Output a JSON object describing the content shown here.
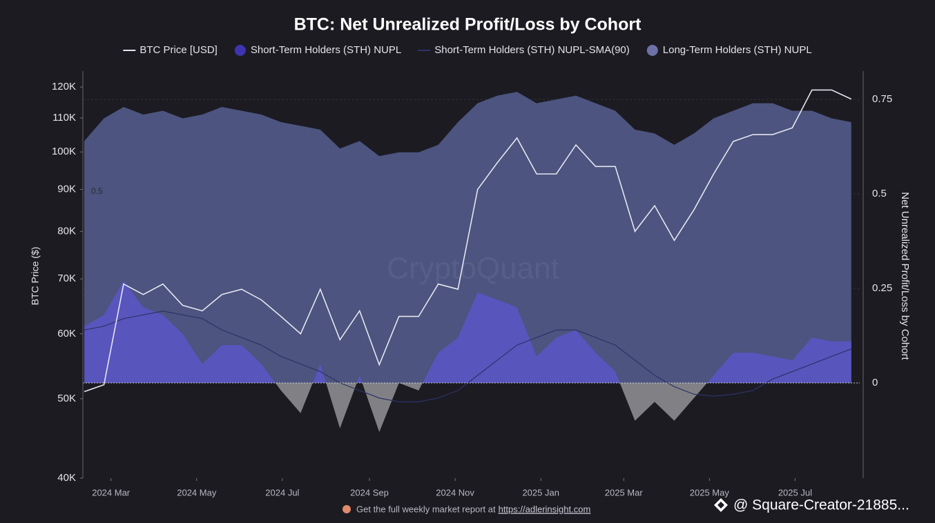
{
  "chart_data": {
    "type": "combo",
    "title": "BTC: Net Unrealized Profit/Loss by Cohort",
    "y_label": "BTC Price ($)",
    "y2_label": "Net Unrealized Profit/Loss by Cohort",
    "watermark": "CryptoQuant",
    "annotations": [
      "0.5"
    ],
    "footer": {
      "text": "Get the full weekly market report at",
      "link": "https://adlerinsight.com"
    },
    "overlay": "@ Square-Creator-21885...",
    "x": [
      "2024-02-11",
      "2024-02-25",
      "2024-03-10",
      "2024-03-24",
      "2024-04-07",
      "2024-04-21",
      "2024-05-05",
      "2024-05-19",
      "2024-06-02",
      "2024-06-16",
      "2024-06-30",
      "2024-07-14",
      "2024-07-28",
      "2024-08-11",
      "2024-08-25",
      "2024-09-08",
      "2024-09-22",
      "2024-10-06",
      "2024-10-20",
      "2024-11-03",
      "2024-11-17",
      "2024-12-01",
      "2024-12-15",
      "2024-12-29",
      "2025-01-12",
      "2025-01-26",
      "2025-02-09",
      "2025-02-23",
      "2025-03-09",
      "2025-03-23",
      "2025-04-06",
      "2025-04-20",
      "2025-05-04",
      "2025-05-18",
      "2025-06-01",
      "2025-06-15",
      "2025-06-29",
      "2025-07-13",
      "2025-07-27",
      "2025-08-10"
    ],
    "xlim": [
      "2024-02-10",
      "2025-08-16"
    ],
    "xticks": [
      {
        "value": "2024-03-01",
        "label": "2024 Mar"
      },
      {
        "value": "2024-05-01",
        "label": "2024 May"
      },
      {
        "value": "2024-07-01",
        "label": "2024 Jul"
      },
      {
        "value": "2024-09-01",
        "label": "2024 Sep"
      },
      {
        "value": "2024-11-01",
        "label": "2024 Nov"
      },
      {
        "value": "2025-01-01",
        "label": "2025 Jan"
      },
      {
        "value": "2025-03-01",
        "label": "2025 Mar"
      },
      {
        "value": "2025-05-01",
        "label": "2025 May"
      },
      {
        "value": "2025-07-01",
        "label": "2025 Jul"
      }
    ],
    "ylim": [
      40000,
      125500
    ],
    "log_y": true,
    "yticks": [
      {
        "value": 40000,
        "label": "40K"
      },
      {
        "value": 50000,
        "label": "50K"
      },
      {
        "value": 60000,
        "label": "60K"
      },
      {
        "value": 70000,
        "label": "70K"
      },
      {
        "value": 80000,
        "label": "80K"
      },
      {
        "value": 90000,
        "label": "90K"
      },
      {
        "value": 100000,
        "label": "100K"
      },
      {
        "value": 110000,
        "label": "110K"
      },
      {
        "value": 120000,
        "label": "120K"
      }
    ],
    "y2lim": [
      -0.252,
      0.825
    ],
    "y2ticks": [
      0,
      0.25,
      0.5,
      0.75
    ],
    "grid": true,
    "series": [
      {
        "name": "BTC Price [USD]",
        "color": "#e6e6f0",
        "kind": "line",
        "axis": "y",
        "values": [
          51000,
          52000,
          69000,
          67000,
          69000,
          65000,
          64000,
          67000,
          68000,
          66000,
          63000,
          60000,
          68000,
          59000,
          64000,
          55000,
          63000,
          63000,
          69000,
          68000,
          90000,
          97000,
          104000,
          94000,
          94000,
          102000,
          96000,
          96000,
          80000,
          86000,
          78000,
          85000,
          94000,
          103000,
          105000,
          105000,
          107000,
          119000,
          119000,
          116000
        ]
      },
      {
        "name": "Short-Term Holders (STH) NUPL",
        "color": "#3d35b0",
        "kind": "area",
        "axis": "y2",
        "fill": "#5a55c8",
        "negative_fill": "#8c8c90",
        "values": [
          0.15,
          0.18,
          0.27,
          0.2,
          0.18,
          0.13,
          0.05,
          0.1,
          0.1,
          0.05,
          -0.02,
          -0.08,
          0.05,
          -0.12,
          0.02,
          -0.13,
          0.0,
          -0.02,
          0.08,
          0.12,
          0.24,
          0.22,
          0.2,
          0.07,
          0.12,
          0.14,
          0.08,
          0.03,
          -0.1,
          -0.05,
          -0.1,
          -0.04,
          0.02,
          0.08,
          0.08,
          0.07,
          0.06,
          0.12,
          0.11,
          0.11
        ]
      },
      {
        "name": "Short-Term Holders (STH) NUPL-SMA(90)",
        "color": "#2c3366",
        "kind": "line",
        "axis": "y2",
        "values": [
          0.14,
          0.15,
          0.17,
          0.18,
          0.19,
          0.18,
          0.17,
          0.14,
          0.12,
          0.1,
          0.07,
          0.05,
          0.03,
          0.0,
          -0.02,
          -0.04,
          -0.05,
          -0.05,
          -0.04,
          -0.02,
          0.02,
          0.06,
          0.1,
          0.12,
          0.14,
          0.14,
          0.12,
          0.1,
          0.06,
          0.02,
          -0.01,
          -0.03,
          -0.035,
          -0.03,
          -0.02,
          0.01,
          0.03,
          0.05,
          0.07,
          0.09
        ]
      },
      {
        "name": "Long-Term Holders (STH) NUPL",
        "color": "#6c72a8",
        "kind": "area",
        "axis": "y2",
        "fill": "#4f5785",
        "values": [
          0.64,
          0.7,
          0.73,
          0.71,
          0.72,
          0.7,
          0.71,
          0.73,
          0.72,
          0.71,
          0.69,
          0.68,
          0.67,
          0.62,
          0.64,
          0.6,
          0.61,
          0.61,
          0.63,
          0.69,
          0.74,
          0.76,
          0.77,
          0.74,
          0.75,
          0.76,
          0.74,
          0.72,
          0.67,
          0.66,
          0.63,
          0.66,
          0.7,
          0.72,
          0.74,
          0.74,
          0.72,
          0.72,
          0.7,
          0.69
        ]
      }
    ]
  }
}
